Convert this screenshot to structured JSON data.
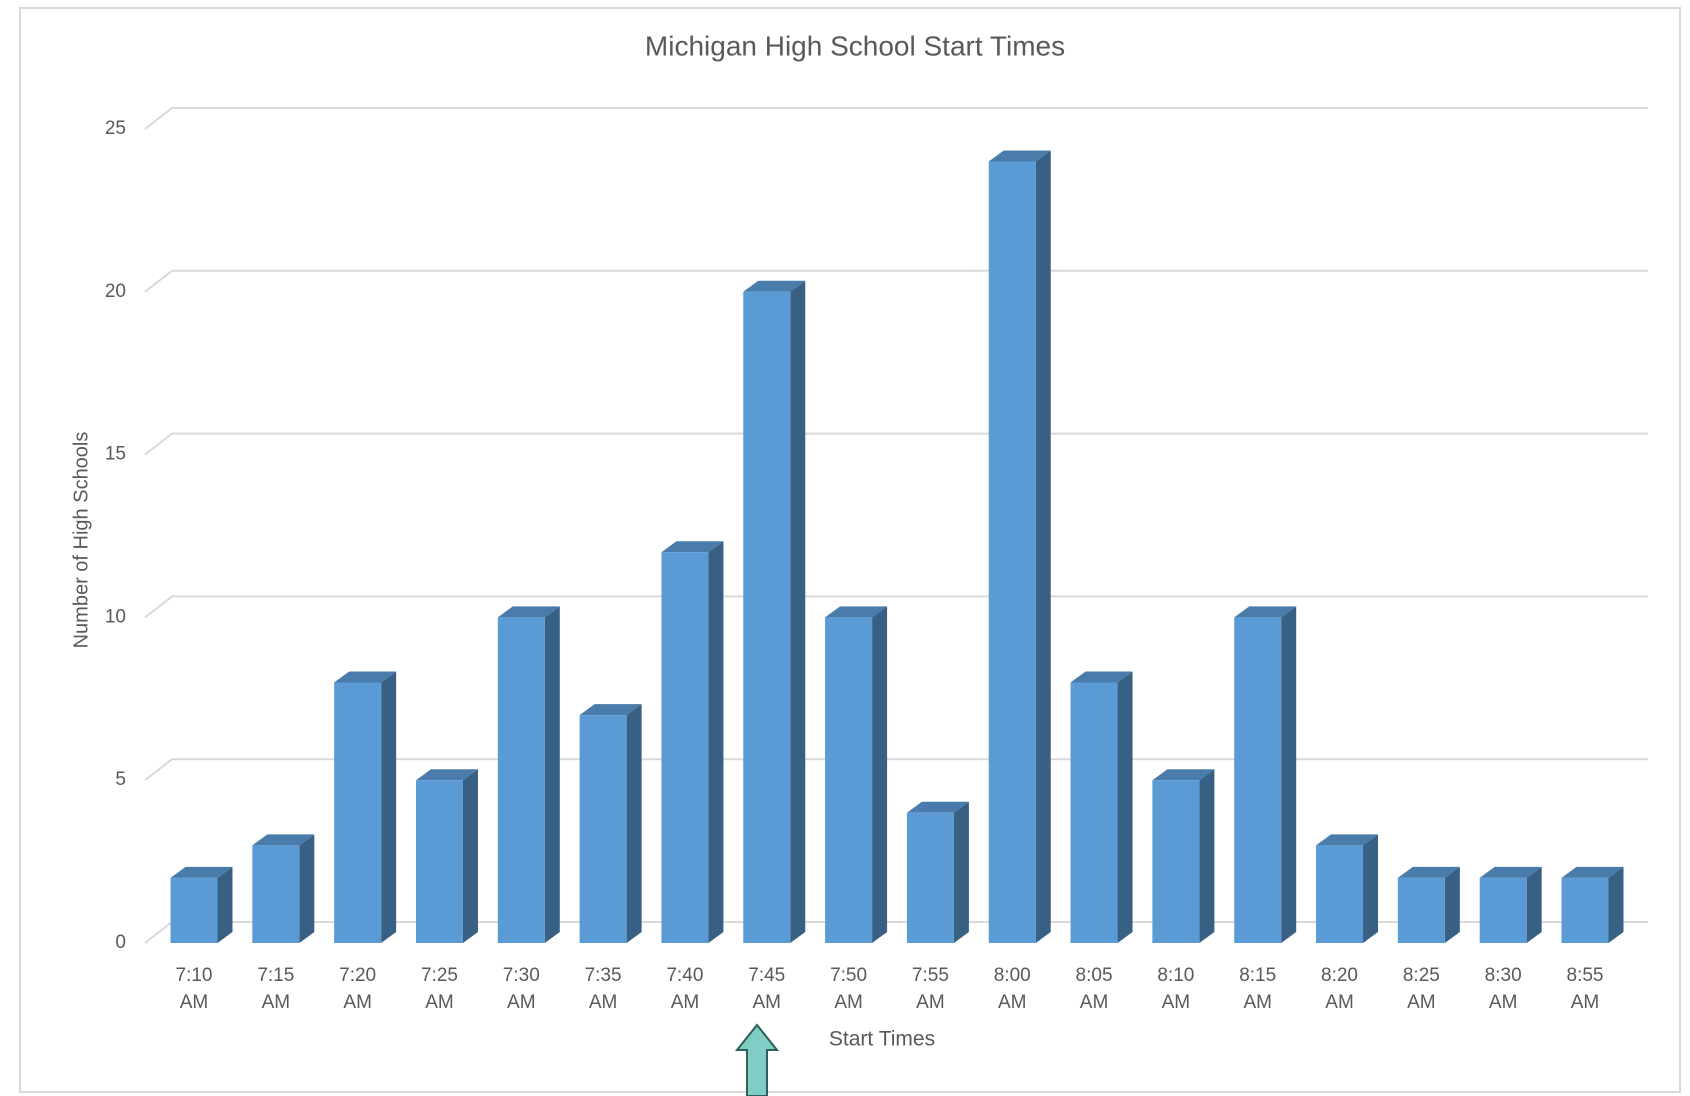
{
  "chart_data": {
    "type": "bar3d",
    "title": "Michigan High School Start Times",
    "x_label": "Start Times",
    "y_label": "Number of High Schools",
    "categories": [
      "7:10 AM",
      "7:15 AM",
      "7:20 AM",
      "7:25 AM",
      "7:30 AM",
      "7:35 AM",
      "7:40 AM",
      "7:45 AM",
      "7:50 AM",
      "7:55 AM",
      "8:00 AM",
      "8:05 AM",
      "8:10 AM",
      "8:15 AM",
      "8:20 AM",
      "8:25 AM",
      "8:30 AM",
      "8:55 AM"
    ],
    "values": [
      2,
      3,
      8,
      5,
      10,
      7,
      12,
      20,
      10,
      4,
      24,
      8,
      5,
      10,
      3,
      2,
      2,
      2
    ],
    "color": "#5b9bd5",
    "ylim": [
      0,
      25
    ],
    "yticks": [
      0,
      5,
      10,
      15,
      20,
      25
    ],
    "grid": true
  }
}
